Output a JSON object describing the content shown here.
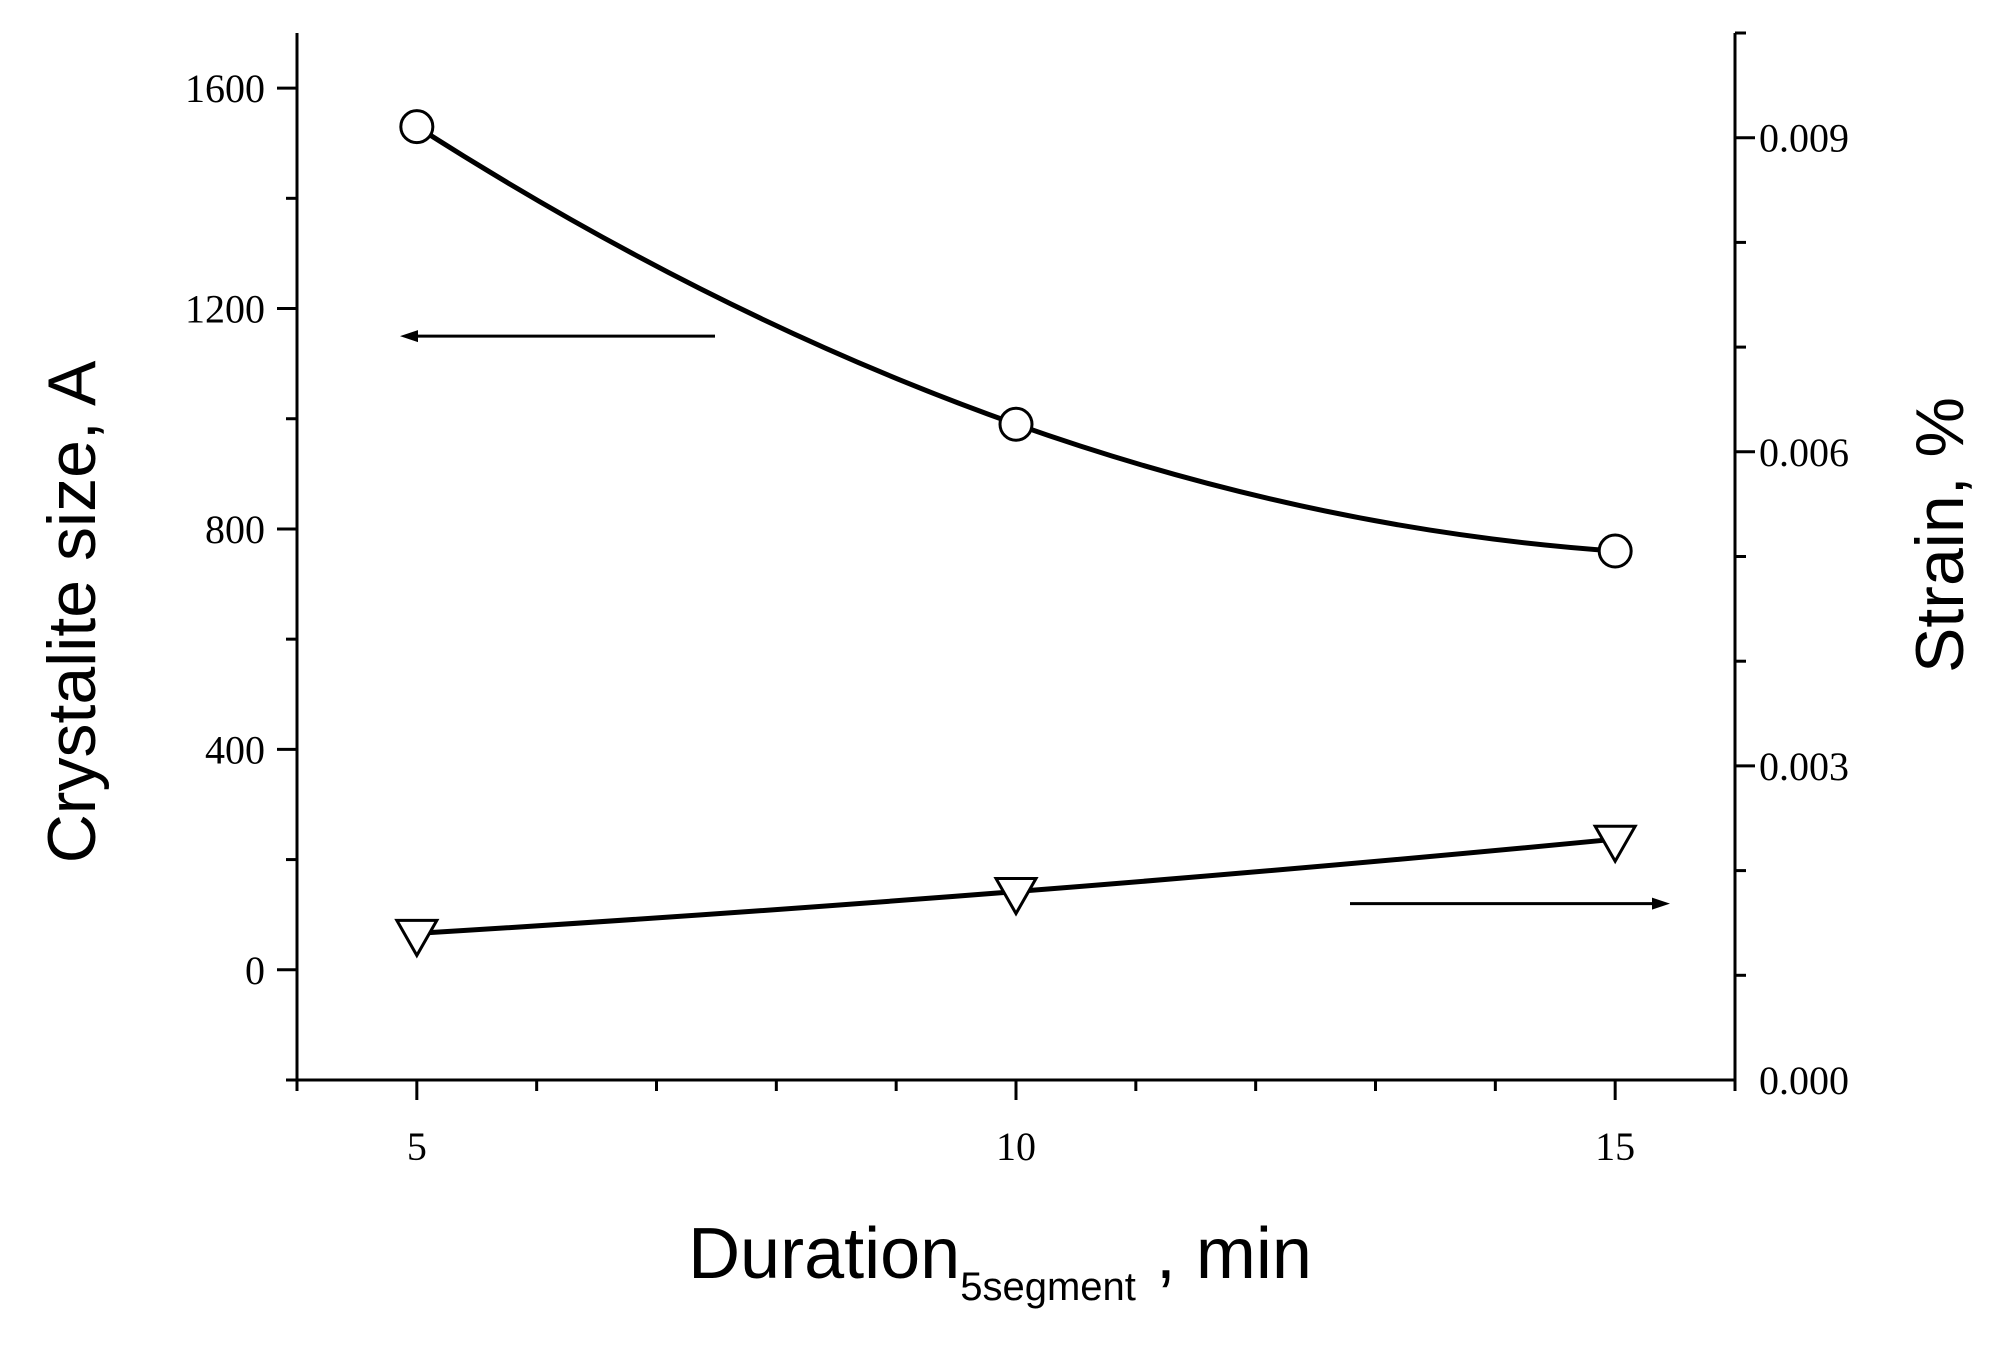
{
  "chart_data": {
    "type": "line",
    "x": [
      5,
      10,
      15
    ],
    "xlabel": {
      "main": "Duration",
      "subscript": "5segment",
      "suffix": " , min"
    },
    "ylabel_left": "Crystalite size, A",
    "ylabel_right": "Strain, %",
    "xlim": [
      4,
      16
    ],
    "ylim_left": [
      -200,
      1700
    ],
    "ylim_right": [
      0,
      0.01
    ],
    "x_ticks": [
      5,
      10,
      15
    ],
    "x_tick_labels": [
      "5",
      "10",
      "15"
    ],
    "y_left_ticks": [
      0,
      400,
      800,
      1200,
      1600
    ],
    "y_left_tick_labels": [
      "0",
      "400",
      "800",
      "1200",
      "1600"
    ],
    "y_right_ticks": [
      0,
      0.003,
      0.006,
      0.009
    ],
    "y_right_tick_labels": [
      "0.000",
      "0.003",
      "0.006",
      "0.009"
    ],
    "grid": false,
    "legend": "none",
    "series": [
      {
        "axis": "left",
        "marker": "circle",
        "values": [
          1530,
          990,
          760
        ],
        "arrow": "left"
      },
      {
        "axis": "right",
        "marker": "triangle-down",
        "values": [
          0.0014,
          0.0018,
          0.0023
        ],
        "arrow": "right"
      }
    ],
    "colors": {
      "line": "#000000",
      "background": "#ffffff"
    }
  }
}
